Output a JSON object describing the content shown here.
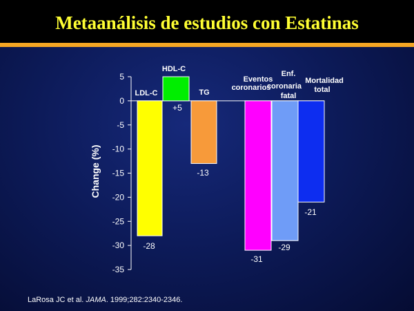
{
  "header": {
    "title": "Metaanálisis de estudios con Estatinas"
  },
  "citation": {
    "authors": "LaRosa JC et al. ",
    "journal": "JAMA",
    "details": ". 1999;282:2340-2346."
  },
  "colors": {
    "title": "#ffff33",
    "accent_bar": "#f5a623",
    "text": "#ffffff"
  },
  "chart_data": {
    "type": "bar",
    "ylabel": "Change (%)",
    "ylim": [
      -35,
      5
    ],
    "yticks": [
      "5",
      "0",
      "-5",
      "-10",
      "-15",
      "-20",
      "-25",
      "-30",
      "-35"
    ],
    "grid": false,
    "bars": [
      {
        "label": [
          "LDL-C"
        ],
        "value": -28,
        "value_label": "-28",
        "color": "#ffff00"
      },
      {
        "label": [
          "HDL-C"
        ],
        "value": 5,
        "value_label": "+5",
        "color": "#00ee00"
      },
      {
        "label": [
          "TG"
        ],
        "value": -13,
        "value_label": "-13",
        "color": "#f79a3a"
      },
      {
        "label": [
          "Eventos",
          "coronarios"
        ],
        "value": -31,
        "value_label": "-31",
        "color": "#ff00ff"
      },
      {
        "label": [
          "Enf.",
          "coronaria",
          "fatal"
        ],
        "value": -29,
        "value_label": "-29",
        "color": "#6f9cf7"
      },
      {
        "label": [
          "Mortalidad",
          "total"
        ],
        "value": -21,
        "value_label": "-21",
        "color": "#0d2df0"
      }
    ]
  }
}
